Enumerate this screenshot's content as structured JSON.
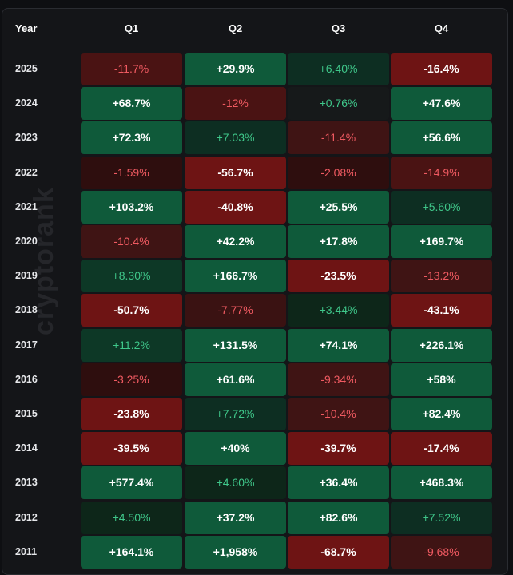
{
  "header": {
    "year": "Year",
    "quarters": [
      "Q1",
      "Q2",
      "Q3",
      "Q4"
    ]
  },
  "watermark": "cryptorank",
  "rows": [
    {
      "year": "2025",
      "cells": [
        {
          "v": "-11.7%",
          "t": "dim-neg",
          "c": "#4a1313"
        },
        {
          "v": "+29.9%",
          "t": "bright",
          "c": "#0f5a3a"
        },
        {
          "v": "+6.40%",
          "t": "dim-pos",
          "c": "#0d2e22"
        },
        {
          "v": "-16.4%",
          "t": "bright",
          "c": "#6e1414"
        }
      ]
    },
    {
      "year": "2024",
      "cells": [
        {
          "v": "+68.7%",
          "t": "bright",
          "c": "#0f5a3a"
        },
        {
          "v": "-12%",
          "t": "dim-neg",
          "c": "#4a1313"
        },
        {
          "v": "+0.76%",
          "t": "dim-pos",
          "c": "#16191a"
        },
        {
          "v": "+47.6%",
          "t": "bright",
          "c": "#0f5a3a"
        }
      ]
    },
    {
      "year": "2023",
      "cells": [
        {
          "v": "+72.3%",
          "t": "bright",
          "c": "#0f5a3a"
        },
        {
          "v": "+7.03%",
          "t": "dim-pos",
          "c": "#0d2e22"
        },
        {
          "v": "-11.4%",
          "t": "dim-neg",
          "c": "#3f1414"
        },
        {
          "v": "+56.6%",
          "t": "bright",
          "c": "#0f5a3a"
        }
      ]
    },
    {
      "year": "2022",
      "cells": [
        {
          "v": "-1.59%",
          "t": "dim-neg",
          "c": "#2e0e0e"
        },
        {
          "v": "-56.7%",
          "t": "bright",
          "c": "#6e1414"
        },
        {
          "v": "-2.08%",
          "t": "dim-neg",
          "c": "#2e0e0e"
        },
        {
          "v": "-14.9%",
          "t": "dim-neg",
          "c": "#4a1313"
        }
      ]
    },
    {
      "year": "2021",
      "cells": [
        {
          "v": "+103.2%",
          "t": "bright",
          "c": "#0f5a3a"
        },
        {
          "v": "-40.8%",
          "t": "bright",
          "c": "#6e1414"
        },
        {
          "v": "+25.5%",
          "t": "bright",
          "c": "#0f5a3a"
        },
        {
          "v": "+5.60%",
          "t": "dim-pos",
          "c": "#0d2e22"
        }
      ]
    },
    {
      "year": "2020",
      "cells": [
        {
          "v": "-10.4%",
          "t": "dim-neg",
          "c": "#3f1414"
        },
        {
          "v": "+42.2%",
          "t": "bright",
          "c": "#0f5a3a"
        },
        {
          "v": "+17.8%",
          "t": "bright",
          "c": "#0f5a3a"
        },
        {
          "v": "+169.7%",
          "t": "bright",
          "c": "#0f5a3a"
        }
      ]
    },
    {
      "year": "2019",
      "cells": [
        {
          "v": "+8.30%",
          "t": "dim-pos",
          "c": "#0d3826"
        },
        {
          "v": "+166.7%",
          "t": "bright",
          "c": "#0f5a3a"
        },
        {
          "v": "-23.5%",
          "t": "bright",
          "c": "#6e1414"
        },
        {
          "v": "-13.2%",
          "t": "dim-neg",
          "c": "#3f1414"
        }
      ]
    },
    {
      "year": "2018",
      "cells": [
        {
          "v": "-50.7%",
          "t": "bright",
          "c": "#6e1414"
        },
        {
          "v": "-7.77%",
          "t": "dim-neg",
          "c": "#3a1212"
        },
        {
          "v": "+3.44%",
          "t": "dim-pos",
          "c": "#0d2619"
        },
        {
          "v": "-43.1%",
          "t": "bright",
          "c": "#6e1414"
        }
      ]
    },
    {
      "year": "2017",
      "cells": [
        {
          "v": "+11.2%",
          "t": "dim-pos",
          "c": "#0d3826"
        },
        {
          "v": "+131.5%",
          "t": "bright",
          "c": "#0f5a3a"
        },
        {
          "v": "+74.1%",
          "t": "bright",
          "c": "#0f5a3a"
        },
        {
          "v": "+226.1%",
          "t": "bright",
          "c": "#0f5a3a"
        }
      ]
    },
    {
      "year": "2016",
      "cells": [
        {
          "v": "-3.25%",
          "t": "dim-neg",
          "c": "#2e0e0e"
        },
        {
          "v": "+61.6%",
          "t": "bright",
          "c": "#0f5a3a"
        },
        {
          "v": "-9.34%",
          "t": "dim-neg",
          "c": "#3f1414"
        },
        {
          "v": "+58%",
          "t": "bright",
          "c": "#0f5a3a"
        }
      ]
    },
    {
      "year": "2015",
      "cells": [
        {
          "v": "-23.8%",
          "t": "bright",
          "c": "#6e1414"
        },
        {
          "v": "+7.72%",
          "t": "dim-pos",
          "c": "#0d2e22"
        },
        {
          "v": "-10.4%",
          "t": "dim-neg",
          "c": "#3f1414"
        },
        {
          "v": "+82.4%",
          "t": "bright",
          "c": "#0f5a3a"
        }
      ]
    },
    {
      "year": "2014",
      "cells": [
        {
          "v": "-39.5%",
          "t": "bright",
          "c": "#6e1414"
        },
        {
          "v": "+40%",
          "t": "bright",
          "c": "#0f5a3a"
        },
        {
          "v": "-39.7%",
          "t": "bright",
          "c": "#6e1414"
        },
        {
          "v": "-17.4%",
          "t": "bright",
          "c": "#6e1414"
        }
      ]
    },
    {
      "year": "2013",
      "cells": [
        {
          "v": "+577.4%",
          "t": "bright",
          "c": "#0f5a3a"
        },
        {
          "v": "+4.60%",
          "t": "dim-pos",
          "c": "#0d2619"
        },
        {
          "v": "+36.4%",
          "t": "bright",
          "c": "#0f5a3a"
        },
        {
          "v": "+468.3%",
          "t": "bright",
          "c": "#0f5a3a"
        }
      ]
    },
    {
      "year": "2012",
      "cells": [
        {
          "v": "+4.50%",
          "t": "dim-pos",
          "c": "#0d2619"
        },
        {
          "v": "+37.2%",
          "t": "bright",
          "c": "#0f5a3a"
        },
        {
          "v": "+82.6%",
          "t": "bright",
          "c": "#0f5a3a"
        },
        {
          "v": "+7.52%",
          "t": "dim-pos",
          "c": "#0d2e22"
        }
      ]
    },
    {
      "year": "2011",
      "cells": [
        {
          "v": "+164.1%",
          "t": "bright",
          "c": "#0f5a3a"
        },
        {
          "v": "+1,958%",
          "t": "bright",
          "c": "#0f5a3a"
        },
        {
          "v": "-68.7%",
          "t": "bright",
          "c": "#6e1414"
        },
        {
          "v": "-9.68%",
          "t": "dim-neg",
          "c": "#3f1414"
        }
      ]
    }
  ]
}
